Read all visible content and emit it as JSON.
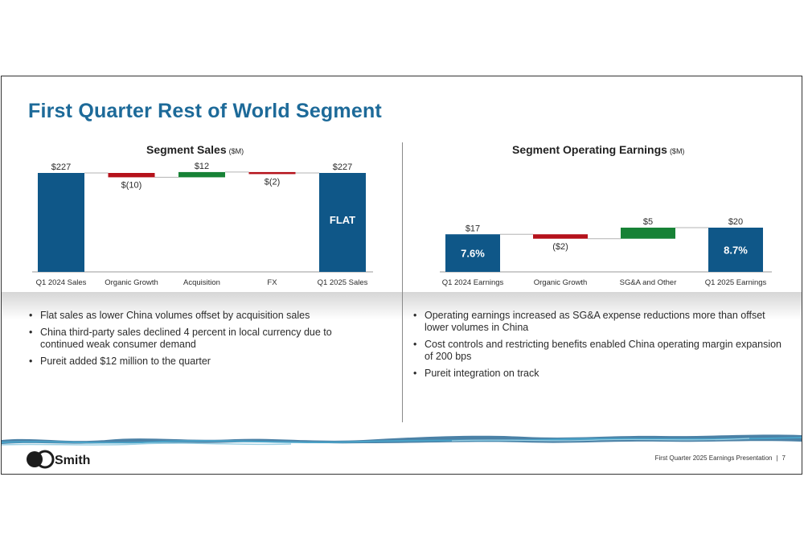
{
  "slide": {
    "title": "First Quarter Rest of World Segment",
    "footer_text": "First Quarter 2025 Earnings Presentation",
    "footer_separator": "|",
    "page_number": "7",
    "logo_text": "A.O. Smith"
  },
  "left_chart_heading": {
    "title": "Segment Sales",
    "unit": "($M)"
  },
  "right_chart_heading": {
    "title": "Segment Operating Earnings",
    "unit": "($M)"
  },
  "chart_data": [
    {
      "type": "bar",
      "subtype": "waterfall",
      "title": "Segment Sales ($M)",
      "categories": [
        "Q1 2024 Sales",
        "Organic Growth",
        "Acquisition",
        "FX",
        "Q1 2025 Sales"
      ],
      "kinds": [
        "total",
        "delta",
        "delta",
        "delta",
        "total"
      ],
      "values": [
        227,
        -10,
        12,
        -2,
        227
      ],
      "value_labels": [
        "$227",
        "$(10)",
        "$12",
        "$(2)",
        "$227"
      ],
      "bar_inner_labels": [
        "",
        "",
        "",
        "",
        "FLAT"
      ],
      "colors": {
        "total": "#0f5788",
        "increase": "#178236",
        "decrease": "#b5121b"
      },
      "grid": false,
      "legend": "none"
    },
    {
      "type": "bar",
      "subtype": "waterfall",
      "title": "Segment Operating Earnings ($M)",
      "categories": [
        "Q1 2024 Earnings",
        "Organic Growth",
        "SG&A and Other",
        "Q1 2025 Earnings"
      ],
      "kinds": [
        "total",
        "delta",
        "delta",
        "total"
      ],
      "values": [
        17,
        -2,
        5,
        20
      ],
      "value_labels": [
        "$17",
        "($2)",
        "$5",
        "$20"
      ],
      "bar_inner_labels": [
        "7.6%",
        "",
        "",
        "8.7%"
      ],
      "colors": {
        "total": "#0f5788",
        "increase": "#178236",
        "decrease": "#b5121b"
      },
      "grid": false,
      "legend": "none"
    }
  ],
  "bullets_left": [
    "Flat sales as lower China volumes offset by acquisition sales",
    "China third-party sales declined 4 percent in local currency due to continued weak consumer demand",
    "Pureit added $12 million to the quarter"
  ],
  "bullets_right": [
    "Operating earnings increased as SG&A expense reductions more than offset lower volumes in China",
    "Cost controls and restricting benefits enabled China operating margin expansion of 200 bps",
    "Pureit integration on track"
  ]
}
